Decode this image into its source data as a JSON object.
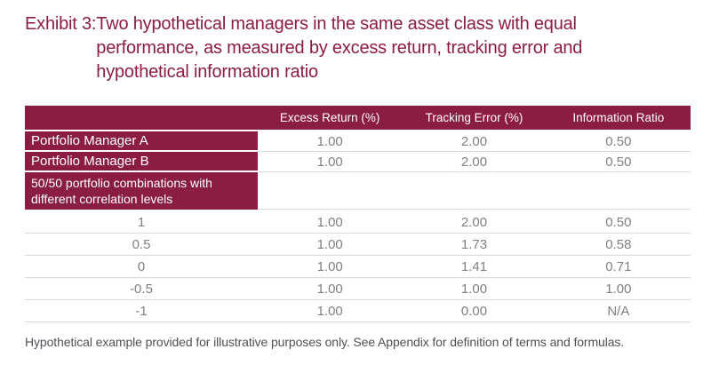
{
  "title": {
    "prefix": "Exhibit 3:",
    "line1": "Two hypothetical managers in the same asset class with equal",
    "line2": "performance, as measured by excess return, tracking error and",
    "line3": "hypothetical information ratio"
  },
  "table": {
    "header": {
      "col0": "",
      "cols": [
        "Excess Return (%)",
        "Tracking Error (%)",
        "Information Ratio"
      ]
    },
    "rows": [
      {
        "label": "Portfolio Manager A",
        "values": [
          "1.00",
          "2.00",
          "0.50"
        ]
      },
      {
        "label": "Portfolio Manager B",
        "values": [
          "1.00",
          "2.00",
          "0.50"
        ]
      }
    ],
    "group": {
      "line1": "50/50 portfolio combinations with",
      "line2": "different correlation levels"
    },
    "corr_rows": [
      {
        "label": "1",
        "values": [
          "1.00",
          "2.00",
          "0.50"
        ]
      },
      {
        "label": "0.5",
        "values": [
          "1.00",
          "1.73",
          "0.58"
        ]
      },
      {
        "label": "0",
        "values": [
          "1.00",
          "1.41",
          "0.71"
        ]
      },
      {
        "label": "-0.5",
        "values": [
          "1.00",
          "1.00",
          "1.00"
        ]
      },
      {
        "label": "-1",
        "values": [
          "1.00",
          "0.00",
          "N/A"
        ]
      }
    ]
  },
  "footer": {
    "note": "Hypothetical example provided for illustrative purposes only. See Appendix for definition of terms and formulas."
  },
  "colors": {
    "maroon": "#8C1D42",
    "value_gray": "#7D8184",
    "divider": "#D8D9DA",
    "footer_gray": "#4E5256",
    "header_text": "#FFFFFF",
    "background": "#FFFFFF"
  },
  "chart_data": {
    "type": "table",
    "title": "Exhibit 3: Two hypothetical managers in the same asset class with equal performance, as measured by excess return, tracking error and hypothetical information ratio",
    "columns": [
      "",
      "Excess Return (%)",
      "Tracking Error (%)",
      "Information Ratio"
    ],
    "rows": [
      [
        "Portfolio Manager A",
        1.0,
        2.0,
        0.5
      ],
      [
        "Portfolio Manager B",
        1.0,
        2.0,
        0.5
      ],
      [
        "50/50 portfolio combinations with different correlation levels",
        null,
        null,
        null
      ],
      [
        "1",
        1.0,
        2.0,
        0.5
      ],
      [
        "0.5",
        1.0,
        1.73,
        0.58
      ],
      [
        "0",
        1.0,
        1.41,
        0.71
      ],
      [
        "-0.5",
        1.0,
        1.0,
        1.0
      ],
      [
        "-1",
        1.0,
        0.0,
        "N/A"
      ]
    ]
  }
}
